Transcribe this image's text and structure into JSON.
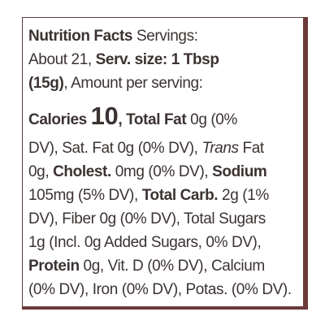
{
  "label": {
    "lines": [
      [
        {
          "text": "Nutrition Facts",
          "style": "bold"
        },
        {
          "text": " Servings:",
          "style": "normal"
        }
      ],
      [
        {
          "text": "About 21, ",
          "style": "normal"
        },
        {
          "text": "Serv. size: 1 Tbsp",
          "style": "bold"
        }
      ],
      [
        {
          "text": "(15g)",
          "style": "bold"
        },
        {
          "text": ", Amount per serving:",
          "style": "normal"
        }
      ],
      [
        {
          "text": "Calories ",
          "style": "bold"
        },
        {
          "text": "10",
          "style": "large"
        },
        {
          "text": ", Total Fat",
          "style": "bold"
        },
        {
          "text": " 0g (0%",
          "style": "normal"
        }
      ],
      [
        {
          "text": "DV), Sat. Fat 0g (0% DV), ",
          "style": "normal"
        },
        {
          "text": "Trans",
          "style": "italic"
        },
        {
          "text": " Fat",
          "style": "normal"
        }
      ],
      [
        {
          "text": "0g, ",
          "style": "normal"
        },
        {
          "text": "Cholest.",
          "style": "bold"
        },
        {
          "text": " 0mg (0% DV), ",
          "style": "normal"
        },
        {
          "text": "Sodium",
          "style": "bold"
        }
      ],
      [
        {
          "text": "105mg (5% DV), ",
          "style": "normal"
        },
        {
          "text": "Total Carb.",
          "style": "bold"
        },
        {
          "text": " 2g (1%",
          "style": "normal"
        }
      ],
      [
        {
          "text": "DV), Fiber 0g (0% DV), Total Sugars",
          "style": "normal"
        }
      ],
      [
        {
          "text": "1g (Incl. 0g Added Sugars, 0% DV),",
          "style": "normal"
        }
      ],
      [
        {
          "text": "Protein",
          "style": "bold"
        },
        {
          "text": " 0g, Vit. D (0% DV), Calcium",
          "style": "normal"
        }
      ],
      [
        {
          "text": "(0% DV), Iron (0% DV), Potas. (0% DV).",
          "style": "normal"
        }
      ]
    ]
  }
}
